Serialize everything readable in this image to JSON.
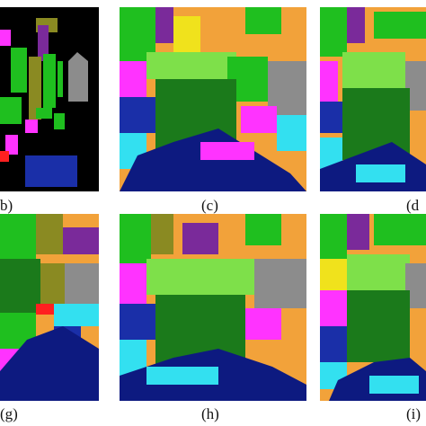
{
  "figure": {
    "panels": [
      {
        "id": "b",
        "label": "b)",
        "variant": "ground-truth"
      },
      {
        "id": "c",
        "label": "(c)",
        "variant": "map"
      },
      {
        "id": "d",
        "label": "(d",
        "variant": "map"
      },
      {
        "id": "g",
        "label": "(g)",
        "variant": "map"
      },
      {
        "id": "h",
        "label": "(h)",
        "variant": "map"
      },
      {
        "id": "i",
        "label": "(i)",
        "variant": "map"
      }
    ],
    "colors": {
      "background": "#000000",
      "orange": "#f2a23a",
      "green": "#1fbf1f",
      "dark_green": "#1b7a1b",
      "olive": "#8a8a22",
      "magenta": "#ff33ff",
      "blue": "#1a2fa8",
      "cyan": "#33e0f0",
      "purple": "#7a2a9a",
      "gray": "#8c8c8c",
      "yellow": "#f0e21c",
      "red": "#ff2020",
      "light_green": "#7ee04a",
      "navy": "#0d1a80"
    }
  }
}
